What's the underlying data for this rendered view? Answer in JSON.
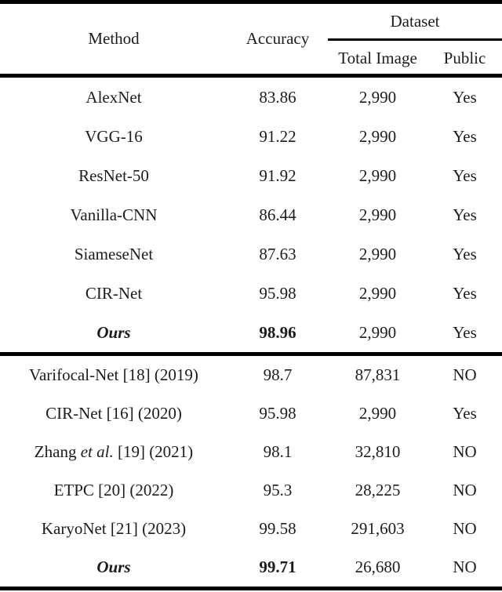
{
  "table": {
    "header": {
      "method": "Method",
      "accuracy": "Accuracy",
      "dataset_group": "Dataset",
      "total_image": "Total Image",
      "public": "Public"
    },
    "rows": [
      {
        "method": "AlexNet",
        "accuracy": "83.86",
        "total_image": "2,990",
        "public": "Yes"
      },
      {
        "method": "VGG-16",
        "accuracy": "91.22",
        "total_image": "2,990",
        "public": "Yes"
      },
      {
        "method": "ResNet-50",
        "accuracy": "91.92",
        "total_image": "2,990",
        "public": "Yes"
      },
      {
        "method": "Vanilla-CNN",
        "accuracy": "86.44",
        "total_image": "2,990",
        "public": "Yes"
      },
      {
        "method": "SiameseNet",
        "accuracy": "87.63",
        "total_image": "2,990",
        "public": "Yes"
      },
      {
        "method": "CIR-Net",
        "accuracy": "95.98",
        "total_image": "2,990",
        "public": "Yes"
      },
      {
        "method": "Ours",
        "accuracy": "98.96",
        "total_image": "2,990",
        "public": "Yes"
      },
      {
        "method": "Varifocal-Net [18] (2019)",
        "accuracy": "98.7",
        "total_image": "87,831",
        "public": "NO"
      },
      {
        "method": "CIR-Net [16] (2020)",
        "accuracy": "95.98",
        "total_image": "2,990",
        "public": "Yes"
      },
      {
        "method_prefix": "Zhang ",
        "method_italic": "et al.",
        "method_suffix": " [19] (2021)",
        "accuracy": "98.1",
        "total_image": "32,810",
        "public": "NO"
      },
      {
        "method": "ETPC [20] (2022)",
        "accuracy": "95.3",
        "total_image": "28,225",
        "public": "NO"
      },
      {
        "method": "KaryoNet [21] (2023)",
        "accuracy": "99.58",
        "total_image": "291,603",
        "public": "NO"
      },
      {
        "method": "Ours",
        "accuracy": "99.71",
        "total_image": "26,680",
        "public": "NO"
      }
    ],
    "colors": {
      "text": "#1c1c1c",
      "rule": "#000000",
      "background": "#ffffff"
    }
  }
}
